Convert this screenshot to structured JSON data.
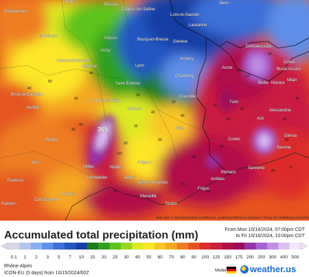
{
  "map": {
    "cities": [
      "Nevers",
      "Beaune",
      "Chalon-sur-Saône",
      "Lons-le-Saunier",
      "Lausanne",
      "Bern",
      "Montluçon",
      "Mâcon",
      "Bourg-en-Bresse",
      "Genève",
      "Vichy",
      "Clermont-Ferrand",
      "Roanne",
      "Annecy",
      "Domodossola",
      "Lyon",
      "Brive-la-Gaillarde",
      "Saint-Étienne",
      "Chambéry",
      "Aosta",
      "Busto Arsizio",
      "Como",
      "Milan",
      "Le Puy-en-Velay",
      "Grenoble",
      "Biella",
      "Novara",
      "Aurillac",
      "Valence",
      "Turin",
      "Alessandria",
      "Asti",
      "Rodez",
      "Gap",
      "Cuneo",
      "Genoa",
      "Savona",
      "Millau",
      "Albi",
      "Nîmes",
      "Avignon",
      "Monaco",
      "Sanremo",
      "Toulouse",
      "Montpellier",
      "Arles",
      "Aix-en-Provence",
      "Fréjus",
      "Antibes",
      "Béziers",
      "Marseille",
      "Carcassonne",
      "Toulon",
      "Pamiers",
      "Châteauroux"
    ],
    "peak_value": "365",
    "attribution": "Map data © OpenStreetMap contributors, rendering GIScience Research Group @ Heidelberg University"
  },
  "header": {
    "title": "Accumulated total precipitation (mm)",
    "from": "From Mon 10/14/2024, 07:00pm CDT",
    "to": "to Fri 10/18/2024, 10:00pm CDT"
  },
  "legend": {
    "values": [
      "0.1",
      "1",
      "2",
      "3",
      "5",
      "7",
      "10",
      "15",
      "20",
      "25",
      "30",
      "40",
      "50",
      "60",
      "70",
      "80",
      "90",
      "100",
      "125",
      "150",
      "175",
      "200",
      "250",
      "300",
      "400",
      "500"
    ],
    "colors": [
      "#d8d8e8",
      "#b3c6ee",
      "#8aaef0",
      "#5f8fe8",
      "#3d6fd8",
      "#2456c2",
      "#173ea3",
      "#1a7d1a",
      "#2ea01e",
      "#5cc21c",
      "#9bd61e",
      "#dcea22",
      "#fde725",
      "#f9c625",
      "#f4a623",
      "#ee7d22",
      "#e55420",
      "#dc2c2c",
      "#c91f3f",
      "#b01048",
      "#9c0a5a",
      "#9633a8",
      "#a860d0",
      "#c28ee4",
      "#dcc0f0",
      "#f2e6fb"
    ]
  },
  "footer": {
    "region": "Rhône-Alpes",
    "model": "ICON-EU (5 days) from 10/15/2024/00Z",
    "model_label": "Model:",
    "brand": "weather.us"
  }
}
